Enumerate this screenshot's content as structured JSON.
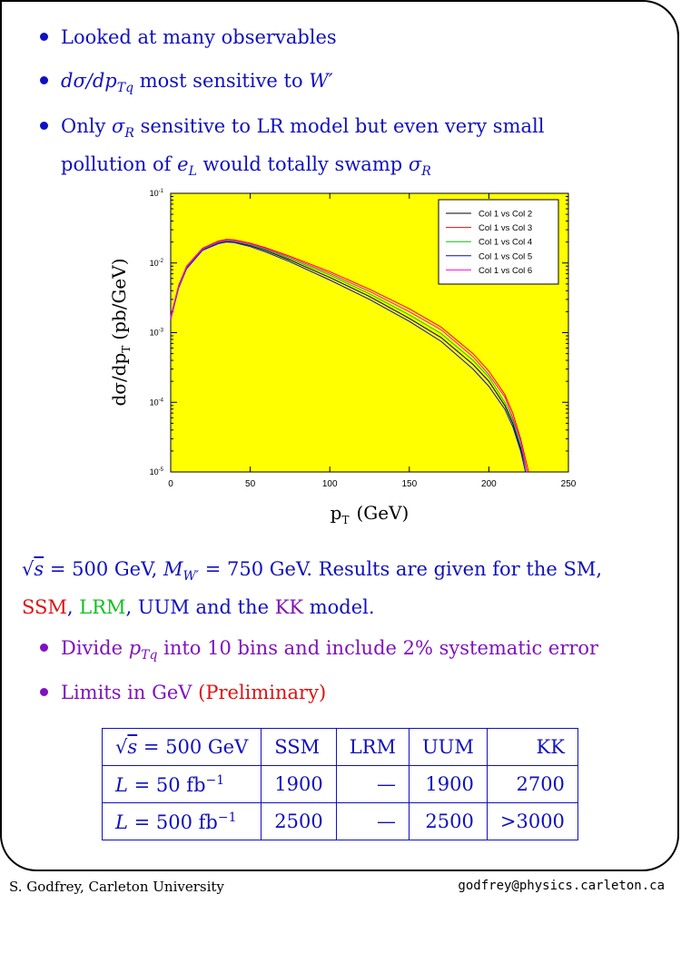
{
  "bullets_top": [
    {
      "text": "Looked at many observables"
    },
    {
      "prefix": "dσ/dp",
      "sub": "Tq",
      "rest": " most sensitive to ",
      "tail": "W′"
    },
    {
      "pre1": "Only ",
      "sig": "σ",
      "sigsub": "R",
      "mid": " sensitive to LR model but even very small pollution of ",
      "e": "e",
      "esub": "L",
      "mid2": " would totally swamp ",
      "sig2": "σ",
      "sig2sub": "R"
    }
  ],
  "chart_data": {
    "type": "line",
    "title": "",
    "xlabel": "p",
    "xlabel_sub": "T",
    "xlabel_unit": "(GeV)",
    "ylabel": "dσ/dp",
    "ylabel_sub": "T",
    "ylabel_unit": "(pb/GeV)",
    "xlim": [
      0,
      250
    ],
    "ylim": [
      1e-05,
      0.1
    ],
    "yscale": "log",
    "x_ticks": [
      "0",
      "50",
      "100",
      "150",
      "200",
      "250"
    ],
    "y_ticks": [
      {
        "base": "10",
        "exp": "-1"
      },
      {
        "base": "10",
        "exp": "-2"
      },
      {
        "base": "10",
        "exp": "-3"
      },
      {
        "base": "10",
        "exp": "-4"
      },
      {
        "base": "10",
        "exp": "-5"
      }
    ],
    "legend_position": "top-right",
    "background": "#ffff00",
    "series": [
      {
        "name": "Col 1 vs Col 2",
        "color": "#000000",
        "points": [
          [
            0,
            0.0016
          ],
          [
            5,
            0.0045
          ],
          [
            10,
            0.0085
          ],
          [
            20,
            0.0155
          ],
          [
            30,
            0.0195
          ],
          [
            35,
            0.0205
          ],
          [
            40,
            0.02
          ],
          [
            50,
            0.0178
          ],
          [
            60,
            0.015
          ],
          [
            75,
            0.011
          ],
          [
            100,
            0.0062
          ],
          [
            125,
            0.0033
          ],
          [
            150,
            0.0016
          ],
          [
            170,
            0.00085
          ],
          [
            190,
            0.00035
          ],
          [
            200,
            0.0002
          ],
          [
            210,
            9e-05
          ],
          [
            215,
            5e-05
          ],
          [
            220,
            2.2e-05
          ],
          [
            224,
            1e-05
          ]
        ]
      },
      {
        "name": "Col 1 vs Col 3",
        "color": "#ff0000",
        "points": [
          [
            0,
            0.0017
          ],
          [
            5,
            0.0048
          ],
          [
            10,
            0.009
          ],
          [
            20,
            0.0163
          ],
          [
            30,
            0.0207
          ],
          [
            35,
            0.0218
          ],
          [
            40,
            0.0215
          ],
          [
            50,
            0.0193
          ],
          [
            60,
            0.0165
          ],
          [
            75,
            0.0125
          ],
          [
            100,
            0.0075
          ],
          [
            125,
            0.0042
          ],
          [
            150,
            0.0022
          ],
          [
            170,
            0.0012
          ],
          [
            190,
            0.0005
          ],
          [
            200,
            0.00028
          ],
          [
            210,
            0.00013
          ],
          [
            215,
            7e-05
          ],
          [
            220,
            3e-05
          ],
          [
            225,
            1e-05
          ]
        ]
      },
      {
        "name": "Col 1 vs Col 4",
        "color": "#00cc00",
        "points": [
          [
            0,
            0.0016
          ],
          [
            5,
            0.0046
          ],
          [
            10,
            0.0086
          ],
          [
            20,
            0.0157
          ],
          [
            30,
            0.0198
          ],
          [
            35,
            0.0208
          ],
          [
            40,
            0.0204
          ],
          [
            50,
            0.0182
          ],
          [
            60,
            0.0155
          ],
          [
            75,
            0.0115
          ],
          [
            100,
            0.0067
          ],
          [
            125,
            0.0036
          ],
          [
            150,
            0.0018
          ],
          [
            170,
            0.00097
          ],
          [
            190,
            0.0004
          ],
          [
            200,
            0.00023
          ],
          [
            210,
            0.0001
          ],
          [
            215,
            5.5e-05
          ],
          [
            220,
            2.5e-05
          ],
          [
            224,
            1e-05
          ]
        ]
      },
      {
        "name": "Col 1 vs Col 5",
        "color": "#0000ff",
        "points": [
          [
            0,
            0.00155
          ],
          [
            5,
            0.0044
          ],
          [
            10,
            0.0083
          ],
          [
            20,
            0.0152
          ],
          [
            30,
            0.019
          ],
          [
            35,
            0.02
          ],
          [
            40,
            0.0196
          ],
          [
            50,
            0.0172
          ],
          [
            60,
            0.0143
          ],
          [
            75,
            0.0104
          ],
          [
            100,
            0.0057
          ],
          [
            125,
            0.003
          ],
          [
            150,
            0.00145
          ],
          [
            170,
            0.00075
          ],
          [
            190,
            0.0003
          ],
          [
            200,
            0.00017
          ],
          [
            210,
            8e-05
          ],
          [
            215,
            4.5e-05
          ],
          [
            220,
            2e-05
          ],
          [
            223,
            1e-05
          ]
        ]
      },
      {
        "name": "Col 1 vs Col 6",
        "color": "#ff00ff",
        "points": [
          [
            0,
            0.0016
          ],
          [
            5,
            0.0046
          ],
          [
            10,
            0.0087
          ],
          [
            20,
            0.0159
          ],
          [
            30,
            0.0201
          ],
          [
            35,
            0.0212
          ],
          [
            40,
            0.0208
          ],
          [
            50,
            0.0187
          ],
          [
            60,
            0.016
          ],
          [
            75,
            0.012
          ],
          [
            100,
            0.0071
          ],
          [
            125,
            0.0039
          ],
          [
            150,
            0.002
          ],
          [
            170,
            0.0011
          ],
          [
            190,
            0.00045
          ],
          [
            200,
            0.00025
          ],
          [
            210,
            0.00012
          ],
          [
            215,
            6e-05
          ],
          [
            220,
            2.8e-05
          ],
          [
            224,
            1e-05
          ]
        ]
      }
    ]
  },
  "para": {
    "sqrt": "√",
    "s": "s",
    "eq1": " = 500 GeV, ",
    "M": "M",
    "Msub": "W′",
    "eq2": " = 750 GeV. Results are given for the SM,",
    "ssm": "SSM",
    "comma1": ", ",
    "lrm": "LRM",
    "comma2": ", UUM and the ",
    "kk": "KK",
    "end": " model."
  },
  "bullets_bottom": [
    {
      "pre": "Divide ",
      "p": "p",
      "psub": "Tq",
      "rest": " into 10 bins and include 2% systematic error"
    },
    {
      "pre": "Limits in GeV ",
      "prelim": "(Preliminary)"
    }
  ],
  "table": {
    "header": {
      "sqrt": "√",
      "s": "s",
      "eq": " = 500 GeV",
      "cols": [
        "SSM",
        "LRM",
        "UUM",
        "KK"
      ]
    },
    "rows": [
      {
        "L": "L",
        "lum": " = 50 fb",
        "exp": "−1",
        "cells": [
          "1900",
          "—",
          "1900",
          "2700"
        ]
      },
      {
        "L": "L",
        "lum": " = 500 fb",
        "exp": "−1",
        "cells": [
          "2500",
          "—",
          "2500",
          ">3000"
        ]
      }
    ]
  },
  "footer": {
    "left": "S. Godfrey, Carleton University",
    "right": "godfrey@physics.carleton.ca"
  }
}
